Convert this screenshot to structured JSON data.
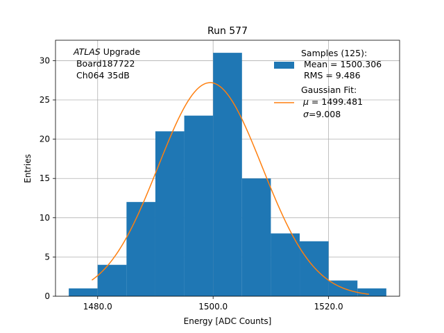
{
  "chart_data": {
    "type": "bar",
    "title": "Run 577",
    "xlabel": "Energy [ADC Counts]",
    "ylabel": "Entries",
    "xlim": [
      1472.7,
      1532.3
    ],
    "ylim": [
      0,
      32.6
    ],
    "xticks": [
      1480.0,
      1500.0,
      1520.0
    ],
    "xtick_labels": [
      "1480.0",
      "1500.0",
      "1520.0"
    ],
    "yticks": [
      0,
      5,
      10,
      15,
      20,
      25,
      30
    ],
    "grid": true,
    "bins": [
      {
        "left": 1475.0,
        "right": 1480.0,
        "count": 1
      },
      {
        "left": 1480.0,
        "right": 1485.0,
        "count": 4
      },
      {
        "left": 1485.0,
        "right": 1490.0,
        "count": 12
      },
      {
        "left": 1490.0,
        "right": 1495.0,
        "count": 21
      },
      {
        "left": 1495.0,
        "right": 1500.0,
        "count": 23
      },
      {
        "left": 1500.0,
        "right": 1505.0,
        "count": 31
      },
      {
        "left": 1505.0,
        "right": 1510.0,
        "count": 15
      },
      {
        "left": 1510.0,
        "right": 1515.0,
        "count": 8
      },
      {
        "left": 1515.0,
        "right": 1520.0,
        "count": 7
      },
      {
        "left": 1520.0,
        "right": 1525.0,
        "count": 2
      },
      {
        "left": 1525.0,
        "right": 1530.0,
        "count": 1
      }
    ],
    "fit": {
      "mu": 1499.481,
      "sigma": 9.008,
      "amplitude": 27.2,
      "x_range": [
        1479.0,
        1527.0
      ]
    },
    "annotation": {
      "line1_italic": "ATLAS",
      "line1_rest": " Upgrade",
      "line2": " Board187722",
      "line3": " Ch064 35dB"
    },
    "legend": {
      "placement": "top-right",
      "samples_line1": "Samples (125):",
      "samples_line2": " Mean = 1500.306",
      "samples_line3": " RMS = 9.486",
      "fit_line1": "Gaussian Fit:",
      "fit_mu_symbol": "μ",
      "fit_mu_value": " = 1499.481",
      "fit_sigma_symbol": "σ",
      "fit_sigma_value": "=9.008"
    },
    "colors": {
      "bars": "#1f77b4",
      "fit": "#ff7f0e",
      "grid": "#b0b0b0"
    }
  }
}
